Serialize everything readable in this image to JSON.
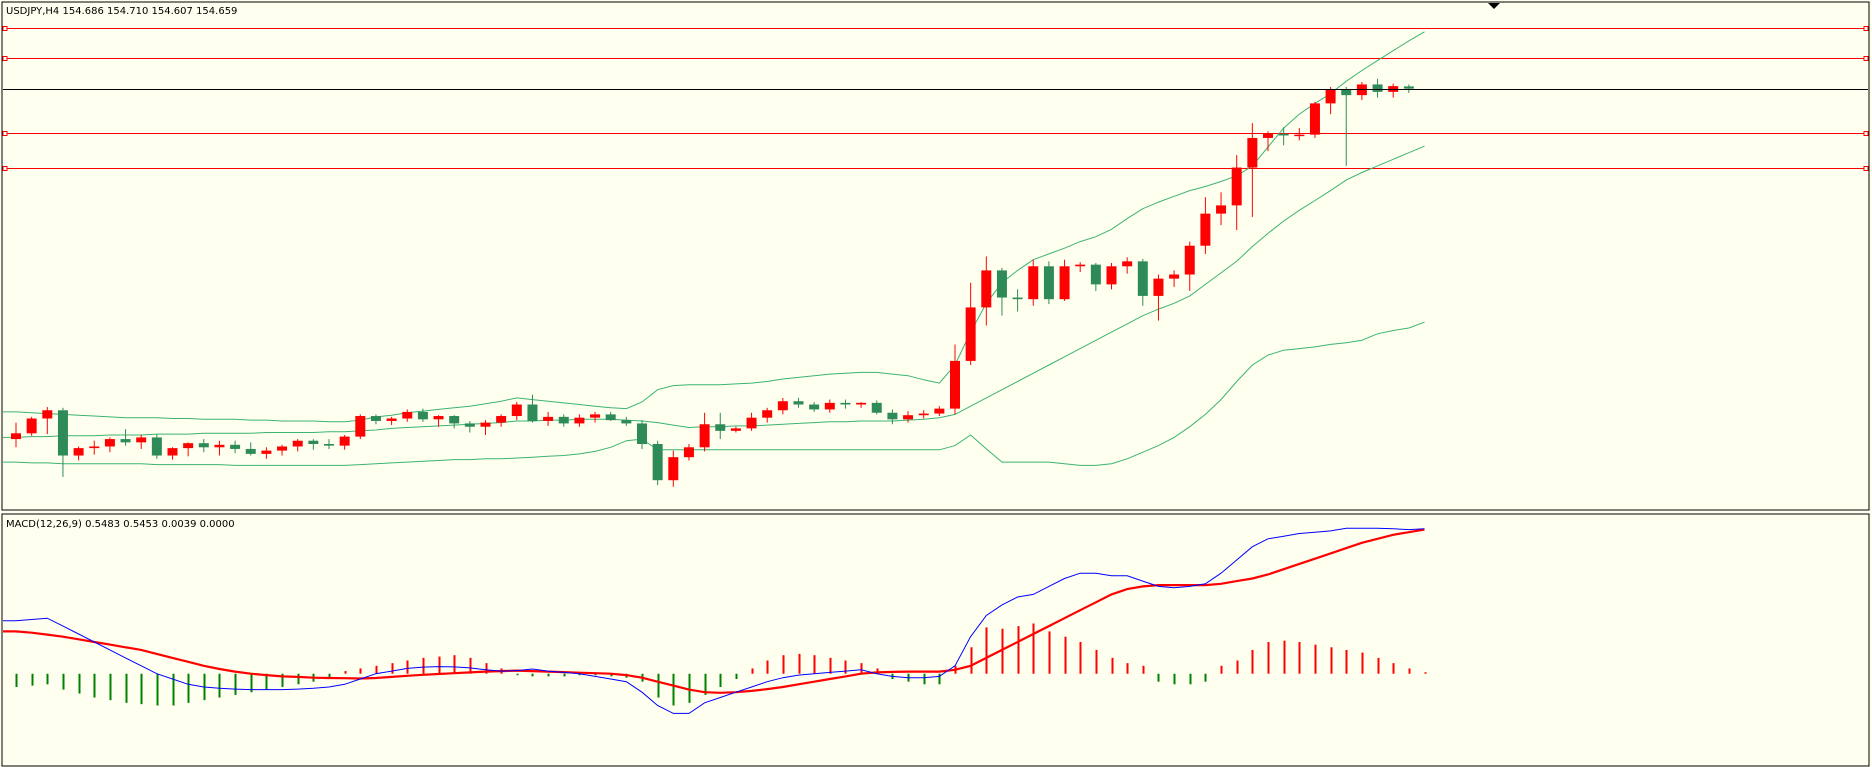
{
  "colors": {
    "background": "#fffff0",
    "frame": "#000000",
    "bull_candle": "#ff0000",
    "bear_candle": "#2e8b57",
    "bands": "#3cb371",
    "sr_lines": "#ff0000",
    "price_line": "#000000",
    "macd_line": "#0000ff",
    "signal_line": "#ff0000",
    "hist_positive": "#ff0000",
    "hist_negative": "#008000"
  },
  "icons": {
    "autoscroll": "triangle-down-icon",
    "line_handle": "square-handle-icon"
  },
  "chart_data": [
    {
      "type": "candlestick",
      "title": "USDJPY,H4  154.686 154.710 154.607 154.659",
      "ylim": [
        149.55,
        155.7
      ],
      "current_price": 154.659,
      "horizontal_levels": [
        155.4,
        155.03,
        154.12,
        153.7
      ],
      "candles": [
        [
          150.4,
          150.6,
          150.3,
          150.47
        ],
        [
          150.47,
          150.67,
          150.44,
          150.65
        ],
        [
          150.65,
          150.79,
          150.46,
          150.75
        ],
        [
          150.75,
          150.78,
          149.94,
          150.2
        ],
        [
          150.2,
          150.31,
          150.14,
          150.29
        ],
        [
          150.29,
          150.38,
          150.21,
          150.31
        ],
        [
          150.31,
          150.42,
          150.24,
          150.4
        ],
        [
          150.4,
          150.52,
          150.32,
          150.36
        ],
        [
          150.36,
          150.45,
          150.28,
          150.42
        ],
        [
          150.42,
          150.46,
          150.16,
          150.2
        ],
        [
          150.2,
          150.3,
          150.15,
          150.29
        ],
        [
          150.29,
          150.36,
          150.19,
          150.35
        ],
        [
          150.35,
          150.4,
          150.24,
          150.3
        ],
        [
          150.3,
          150.38,
          150.2,
          150.33
        ],
        [
          150.33,
          150.38,
          150.23,
          150.28
        ],
        [
          150.28,
          150.36,
          150.2,
          150.22
        ],
        [
          150.22,
          150.3,
          150.16,
          150.26
        ],
        [
          150.26,
          150.33,
          150.2,
          150.31
        ],
        [
          150.31,
          150.4,
          150.25,
          150.38
        ],
        [
          150.38,
          150.4,
          150.27,
          150.34
        ],
        [
          150.34,
          150.4,
          150.28,
          150.32
        ],
        [
          150.32,
          150.45,
          150.27,
          150.43
        ],
        [
          150.43,
          150.7,
          150.4,
          150.68
        ],
        [
          150.68,
          150.7,
          150.58,
          150.62
        ],
        [
          150.62,
          150.67,
          150.57,
          150.65
        ],
        [
          150.65,
          150.76,
          150.61,
          150.73
        ],
        [
          150.73,
          150.77,
          150.61,
          150.64
        ],
        [
          150.64,
          150.69,
          150.55,
          150.68
        ],
        [
          150.68,
          150.69,
          150.53,
          150.59
        ],
        [
          150.59,
          150.62,
          150.48,
          150.55
        ],
        [
          150.55,
          150.63,
          150.45,
          150.6
        ],
        [
          150.6,
          150.7,
          150.55,
          150.68
        ],
        [
          150.68,
          150.85,
          150.63,
          150.82
        ],
        [
          150.82,
          150.94,
          150.6,
          150.62
        ],
        [
          150.62,
          150.73,
          150.56,
          150.67
        ],
        [
          150.67,
          150.7,
          150.55,
          150.59
        ],
        [
          150.59,
          150.7,
          150.55,
          150.66
        ],
        [
          150.66,
          150.73,
          150.6,
          150.7
        ],
        [
          150.7,
          150.73,
          150.62,
          150.63
        ],
        [
          150.63,
          150.67,
          150.56,
          150.59
        ],
        [
          150.59,
          150.63,
          150.28,
          150.34
        ],
        [
          150.34,
          150.38,
          149.84,
          149.9
        ],
        [
          149.9,
          150.26,
          149.82,
          150.18
        ],
        [
          150.18,
          150.34,
          150.14,
          150.3
        ],
        [
          150.3,
          150.72,
          150.25,
          150.58
        ],
        [
          150.58,
          150.72,
          150.4,
          150.5
        ],
        [
          150.5,
          150.55,
          150.48,
          150.53
        ],
        [
          150.53,
          150.72,
          150.5,
          150.66
        ],
        [
          150.66,
          150.78,
          150.6,
          150.75
        ],
        [
          150.75,
          150.9,
          150.7,
          150.86
        ],
        [
          150.86,
          150.9,
          150.78,
          150.82
        ],
        [
          150.82,
          150.85,
          150.73,
          150.76
        ],
        [
          150.76,
          150.88,
          150.72,
          150.84
        ],
        [
          150.84,
          150.88,
          150.77,
          150.82
        ],
        [
          150.82,
          150.85,
          150.78,
          150.84
        ],
        [
          150.84,
          150.87,
          150.7,
          150.72
        ],
        [
          150.72,
          150.76,
          150.58,
          150.64
        ],
        [
          150.64,
          150.74,
          150.6,
          150.69
        ],
        [
          150.69,
          150.75,
          150.65,
          150.71
        ],
        [
          150.71,
          150.8,
          150.68,
          150.77
        ],
        [
          150.77,
          151.55,
          150.7,
          151.35
        ],
        [
          151.35,
          152.3,
          151.3,
          152.0
        ],
        [
          152.0,
          152.62,
          151.78,
          152.45
        ],
        [
          152.45,
          152.48,
          151.9,
          152.12
        ],
        [
          152.12,
          152.22,
          151.95,
          152.1
        ],
        [
          152.1,
          152.58,
          152.02,
          152.5
        ],
        [
          152.5,
          152.56,
          152.04,
          152.1
        ],
        [
          152.1,
          152.58,
          152.08,
          152.5
        ],
        [
          152.5,
          152.55,
          152.43,
          152.52
        ],
        [
          152.52,
          152.54,
          152.2,
          152.28
        ],
        [
          152.28,
          152.54,
          152.22,
          152.5
        ],
        [
          152.5,
          152.61,
          152.41,
          152.56
        ],
        [
          152.56,
          152.59,
          152.02,
          152.14
        ],
        [
          152.14,
          152.4,
          151.84,
          152.35
        ],
        [
          152.35,
          152.45,
          152.25,
          152.4
        ],
        [
          152.4,
          152.8,
          152.2,
          152.75
        ],
        [
          152.75,
          153.34,
          152.65,
          153.14
        ],
        [
          153.14,
          153.4,
          153.0,
          153.24
        ],
        [
          153.24,
          153.85,
          152.94,
          153.7
        ],
        [
          153.7,
          154.24,
          153.1,
          154.06
        ],
        [
          154.06,
          154.14,
          153.9,
          154.11
        ],
        [
          154.11,
          154.19,
          153.97,
          154.09
        ],
        [
          154.09,
          154.18,
          154.03,
          154.1
        ],
        [
          154.1,
          154.5,
          154.06,
          154.48
        ],
        [
          154.48,
          154.68,
          154.35,
          154.65
        ],
        [
          154.65,
          154.68,
          153.72,
          154.58
        ],
        [
          154.58,
          154.74,
          154.52,
          154.71
        ],
        [
          154.71,
          154.78,
          154.55,
          154.62
        ],
        [
          154.62,
          154.72,
          154.55,
          154.69
        ],
        [
          154.686,
          154.71,
          154.607,
          154.659
        ]
      ],
      "bollinger": {
        "upper": [
          150.73,
          150.72,
          150.71,
          150.7,
          150.69,
          150.68,
          150.67,
          150.66,
          150.66,
          150.66,
          150.65,
          150.65,
          150.64,
          150.64,
          150.64,
          150.63,
          150.63,
          150.62,
          150.62,
          150.62,
          150.61,
          150.61,
          150.63,
          150.67,
          150.69,
          150.72,
          150.74,
          150.76,
          150.78,
          150.8,
          150.83,
          150.86,
          150.9,
          150.88,
          150.86,
          150.84,
          150.82,
          150.8,
          150.78,
          150.77,
          150.85,
          151.0,
          151.05,
          151.06,
          151.06,
          151.06,
          151.07,
          151.08,
          151.1,
          151.13,
          151.15,
          151.17,
          151.19,
          151.2,
          151.21,
          151.21,
          151.19,
          151.17,
          151.12,
          151.08,
          151.3,
          151.7,
          152.05,
          152.3,
          152.45,
          152.58,
          152.65,
          152.72,
          152.8,
          152.86,
          152.95,
          153.08,
          153.2,
          153.28,
          153.35,
          153.42,
          153.47,
          153.53,
          153.6,
          153.72,
          153.95,
          154.18,
          154.35,
          154.48,
          154.6,
          154.75,
          154.88,
          155.0,
          155.12,
          155.24,
          155.35
        ],
        "middle": [
          150.42,
          150.43,
          150.43,
          150.44,
          150.44,
          150.44,
          150.45,
          150.45,
          150.45,
          150.46,
          150.46,
          150.46,
          150.47,
          150.47,
          150.47,
          150.47,
          150.48,
          150.48,
          150.48,
          150.48,
          150.49,
          150.49,
          150.5,
          150.51,
          150.53,
          150.54,
          150.55,
          150.56,
          150.57,
          150.58,
          150.59,
          150.6,
          150.62,
          150.62,
          150.63,
          150.63,
          150.64,
          150.64,
          150.64,
          150.63,
          150.62,
          150.6,
          150.57,
          150.54,
          150.55,
          150.55,
          150.56,
          150.56,
          150.57,
          150.58,
          150.59,
          150.6,
          150.61,
          150.61,
          150.62,
          150.62,
          150.62,
          150.63,
          150.64,
          150.66,
          150.7,
          150.8,
          150.9,
          151.0,
          151.1,
          151.2,
          151.3,
          151.4,
          151.5,
          151.6,
          151.7,
          151.8,
          151.9,
          151.98,
          152.05,
          152.14,
          152.28,
          152.42,
          152.56,
          152.74,
          152.9,
          153.05,
          153.18,
          153.3,
          153.42,
          153.55,
          153.64,
          153.72,
          153.8,
          153.88,
          153.96
        ],
        "lower": [
          150.12,
          150.11,
          150.11,
          150.1,
          150.1,
          150.1,
          150.1,
          150.1,
          150.1,
          150.09,
          150.09,
          150.09,
          150.09,
          150.09,
          150.08,
          150.08,
          150.08,
          150.08,
          150.08,
          150.08,
          150.08,
          150.08,
          150.09,
          150.1,
          150.11,
          150.12,
          150.13,
          150.14,
          150.15,
          150.15,
          150.16,
          150.16,
          150.17,
          150.18,
          150.19,
          150.2,
          150.22,
          150.25,
          150.3,
          150.38,
          150.4,
          150.27,
          150.27,
          150.27,
          150.27,
          150.27,
          150.27,
          150.27,
          150.27,
          150.27,
          150.27,
          150.27,
          150.27,
          150.27,
          150.27,
          150.27,
          150.27,
          150.27,
          150.27,
          150.27,
          150.32,
          150.45,
          150.28,
          150.12,
          150.12,
          150.12,
          150.12,
          150.1,
          150.08,
          150.08,
          150.1,
          150.16,
          150.24,
          150.32,
          150.42,
          150.55,
          150.7,
          150.88,
          151.1,
          151.3,
          151.42,
          151.48,
          151.5,
          151.52,
          151.55,
          151.57,
          151.6,
          151.68,
          151.72,
          151.75,
          151.82
        ]
      }
    },
    {
      "type": "macd",
      "title": "MACD(12,26,9) 0.5483 0.5453 0.0039 0.0000",
      "ylim": [
        -0.345,
        0.6
      ],
      "macd": [
        0.2,
        0.205,
        0.21,
        0.18,
        0.15,
        0.12,
        0.09,
        0.06,
        0.03,
        0.0,
        -0.02,
        -0.04,
        -0.05,
        -0.055,
        -0.058,
        -0.06,
        -0.06,
        -0.06,
        -0.058,
        -0.055,
        -0.05,
        -0.04,
        -0.02,
        0.0,
        0.01,
        0.02,
        0.025,
        0.027,
        0.026,
        0.022,
        0.015,
        0.01,
        0.012,
        0.018,
        0.01,
        0.005,
        0.0,
        -0.01,
        -0.02,
        -0.03,
        -0.07,
        -0.12,
        -0.15,
        -0.15,
        -0.11,
        -0.09,
        -0.07,
        -0.05,
        -0.03,
        -0.015,
        -0.005,
        0.0,
        0.005,
        0.01,
        0.015,
        0.0,
        -0.01,
        -0.015,
        -0.015,
        -0.01,
        0.03,
        0.14,
        0.22,
        0.26,
        0.29,
        0.3,
        0.33,
        0.36,
        0.38,
        0.38,
        0.37,
        0.37,
        0.35,
        0.33,
        0.325,
        0.33,
        0.34,
        0.38,
        0.43,
        0.48,
        0.51,
        0.52,
        0.53,
        0.535,
        0.54,
        0.55,
        0.55,
        0.55,
        0.548,
        0.545,
        0.5483
      ],
      "signal": [
        0.16,
        0.155,
        0.148,
        0.14,
        0.13,
        0.12,
        0.11,
        0.1,
        0.09,
        0.075,
        0.06,
        0.045,
        0.03,
        0.018,
        0.008,
        0.0,
        -0.005,
        -0.01,
        -0.012,
        -0.015,
        -0.016,
        -0.017,
        -0.018,
        -0.016,
        -0.012,
        -0.008,
        -0.004,
        -0.001,
        0.002,
        0.005,
        0.008,
        0.01,
        0.012,
        0.01,
        0.008,
        0.006,
        0.004,
        0.002,
        0.0,
        -0.005,
        -0.015,
        -0.03,
        -0.045,
        -0.06,
        -0.07,
        -0.072,
        -0.07,
        -0.065,
        -0.058,
        -0.05,
        -0.04,
        -0.03,
        -0.02,
        -0.01,
        0.0,
        0.005,
        0.007,
        0.008,
        0.008,
        0.008,
        0.015,
        0.03,
        0.06,
        0.09,
        0.12,
        0.15,
        0.18,
        0.21,
        0.24,
        0.27,
        0.3,
        0.32,
        0.33,
        0.335,
        0.335,
        0.335,
        0.335,
        0.34,
        0.35,
        0.36,
        0.375,
        0.395,
        0.415,
        0.435,
        0.455,
        0.475,
        0.495,
        0.51,
        0.525,
        0.535,
        0.5453
      ],
      "histogram": [
        -0.05,
        -0.045,
        -0.04,
        -0.06,
        -0.075,
        -0.09,
        -0.1,
        -0.11,
        -0.115,
        -0.12,
        -0.12,
        -0.11,
        -0.1,
        -0.09,
        -0.08,
        -0.07,
        -0.06,
        -0.05,
        -0.04,
        -0.03,
        -0.02,
        0.01,
        0.02,
        0.03,
        0.04,
        0.05,
        0.06,
        0.065,
        0.07,
        0.06,
        0.04,
        0.02,
        -0.005,
        -0.01,
        -0.01,
        -0.01,
        -0.005,
        -0.002,
        -0.01,
        -0.015,
        -0.03,
        -0.09,
        -0.12,
        -0.11,
        -0.08,
        -0.05,
        -0.02,
        0.02,
        0.05,
        0.07,
        0.075,
        0.07,
        0.06,
        0.05,
        0.04,
        0.02,
        -0.02,
        -0.03,
        -0.04,
        -0.04,
        0.03,
        0.1,
        0.175,
        0.17,
        0.18,
        0.19,
        0.16,
        0.14,
        0.12,
        0.09,
        0.06,
        0.04,
        0.03,
        -0.03,
        -0.04,
        -0.04,
        -0.03,
        0.03,
        0.05,
        0.09,
        0.12,
        0.125,
        0.12,
        0.11,
        0.1,
        0.09,
        0.08,
        0.06,
        0.04,
        0.02,
        0.0039
      ]
    }
  ]
}
